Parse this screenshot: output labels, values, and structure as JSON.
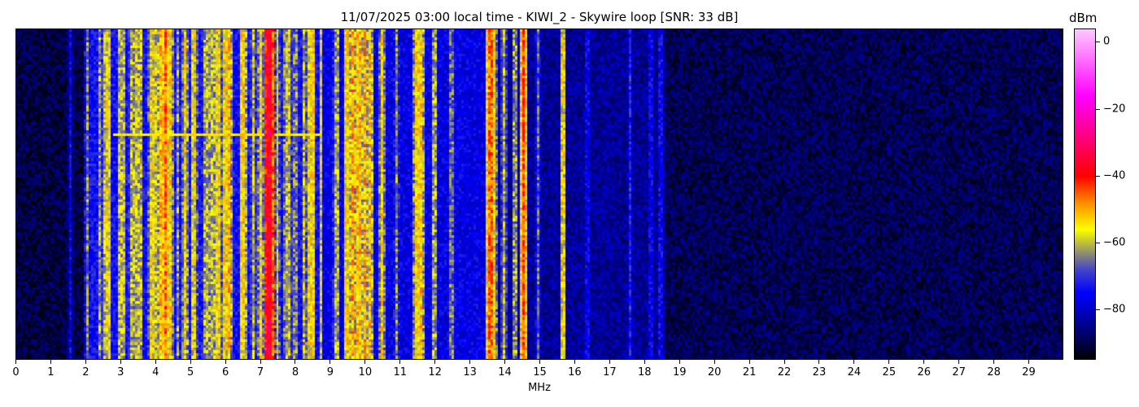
{
  "chart_data": {
    "type": "heatmap",
    "title": "11/07/2025 03:00 local time - KIWI_2 - Skywire loop [SNR: 33 dB]",
    "xlabel": "MHz",
    "ylabel": "",
    "xlim": [
      0,
      30
    ],
    "xticks": [
      "0",
      "1",
      "2",
      "3",
      "4",
      "5",
      "6",
      "7",
      "8",
      "9",
      "10",
      "11",
      "12",
      "13",
      "14",
      "15",
      "16",
      "17",
      "18",
      "19",
      "20",
      "21",
      "22",
      "23",
      "24",
      "25",
      "26",
      "27",
      "28",
      "29"
    ],
    "colorbar": {
      "label": "dBm",
      "range": [
        -95,
        4
      ],
      "ticks": [
        "0",
        "−20",
        "−40",
        "−60",
        "−80"
      ],
      "tick_values": [
        0,
        -20,
        -40,
        -60,
        -80
      ]
    },
    "colormap": [
      {
        "v": -95,
        "c": "#000000"
      },
      {
        "v": -88,
        "c": "#000064"
      },
      {
        "v": -80,
        "c": "#0000c8"
      },
      {
        "v": -75,
        "c": "#0000ff"
      },
      {
        "v": -68,
        "c": "#4646c8"
      },
      {
        "v": -64,
        "c": "#808080"
      },
      {
        "v": -60,
        "c": "#bebe3c"
      },
      {
        "v": -56,
        "c": "#ffff00"
      },
      {
        "v": -48,
        "c": "#ff8c00"
      },
      {
        "v": -40,
        "c": "#ff0000"
      },
      {
        "v": -28,
        "c": "#ff0080"
      },
      {
        "v": -16,
        "c": "#ff00ff"
      },
      {
        "v": 4,
        "c": "#ffc8ff"
      }
    ],
    "noise_floor_bands": [
      {
        "from_mhz": 0,
        "to_mhz": 2.0,
        "dbm": -90
      },
      {
        "from_mhz": 2.0,
        "to_mhz": 8.8,
        "dbm": -74
      },
      {
        "from_mhz": 8.8,
        "to_mhz": 13.6,
        "dbm": -77
      },
      {
        "from_mhz": 13.6,
        "to_mhz": 18.6,
        "dbm": -84
      },
      {
        "from_mhz": 18.6,
        "to_mhz": 30,
        "dbm": -89
      }
    ],
    "signals": [
      {
        "mhz": 1.55,
        "dbm": -76
      },
      {
        "mhz": 2.05,
        "dbm": -64
      },
      {
        "mhz": 2.55,
        "dbm": -60
      },
      {
        "mhz": 2.65,
        "dbm": -57
      },
      {
        "mhz": 3.0,
        "dbm": -60
      },
      {
        "mhz": 3.3,
        "dbm": -61
      },
      {
        "mhz": 3.5,
        "dbm": -60
      },
      {
        "mhz": 3.9,
        "dbm": -57
      },
      {
        "mhz": 4.2,
        "dbm": -52
      },
      {
        "mhz": 4.3,
        "dbm": -46
      },
      {
        "mhz": 4.4,
        "dbm": -55
      },
      {
        "mhz": 4.85,
        "dbm": -56
      },
      {
        "mhz": 5.1,
        "dbm": -58
      },
      {
        "mhz": 5.4,
        "dbm": -62
      },
      {
        "mhz": 5.8,
        "dbm": -57
      },
      {
        "mhz": 6.0,
        "dbm": -56
      },
      {
        "mhz": 6.1,
        "dbm": -52
      },
      {
        "mhz": 6.5,
        "dbm": -55
      },
      {
        "mhz": 6.8,
        "dbm": -60
      },
      {
        "mhz": 7.0,
        "dbm": -55
      },
      {
        "mhz": 7.2,
        "dbm": -40
      },
      {
        "mhz": 7.27,
        "dbm": -36
      },
      {
        "mhz": 7.5,
        "dbm": -58
      },
      {
        "mhz": 7.85,
        "dbm": -60
      },
      {
        "mhz": 8.4,
        "dbm": -57
      },
      {
        "mhz": 8.5,
        "dbm": -55
      },
      {
        "mhz": 9.2,
        "dbm": -62
      },
      {
        "mhz": 9.5,
        "dbm": -55
      },
      {
        "mhz": 9.65,
        "dbm": -50
      },
      {
        "mhz": 9.85,
        "dbm": -52
      },
      {
        "mhz": 10.0,
        "dbm": -50
      },
      {
        "mhz": 10.15,
        "dbm": -51
      },
      {
        "mhz": 10.5,
        "dbm": -55
      },
      {
        "mhz": 10.9,
        "dbm": -64
      },
      {
        "mhz": 11.5,
        "dbm": -55
      },
      {
        "mhz": 11.62,
        "dbm": -53
      },
      {
        "mhz": 12.0,
        "dbm": -62
      },
      {
        "mhz": 12.5,
        "dbm": -66
      },
      {
        "mhz": 13.6,
        "dbm": -46
      },
      {
        "mhz": 13.7,
        "dbm": -56
      },
      {
        "mhz": 14.0,
        "dbm": -60
      },
      {
        "mhz": 14.3,
        "dbm": -63
      },
      {
        "mhz": 14.55,
        "dbm": -43
      },
      {
        "mhz": 14.95,
        "dbm": -67
      },
      {
        "mhz": 15.7,
        "dbm": -57
      },
      {
        "mhz": 16.4,
        "dbm": -76
      },
      {
        "mhz": 17.6,
        "dbm": -72
      },
      {
        "mhz": 18.2,
        "dbm": -76
      },
      {
        "mhz": 18.5,
        "dbm": -75
      }
    ],
    "transient": {
      "from_mhz": 2.8,
      "to_mhz": 8.8,
      "dbm": -55
    }
  }
}
